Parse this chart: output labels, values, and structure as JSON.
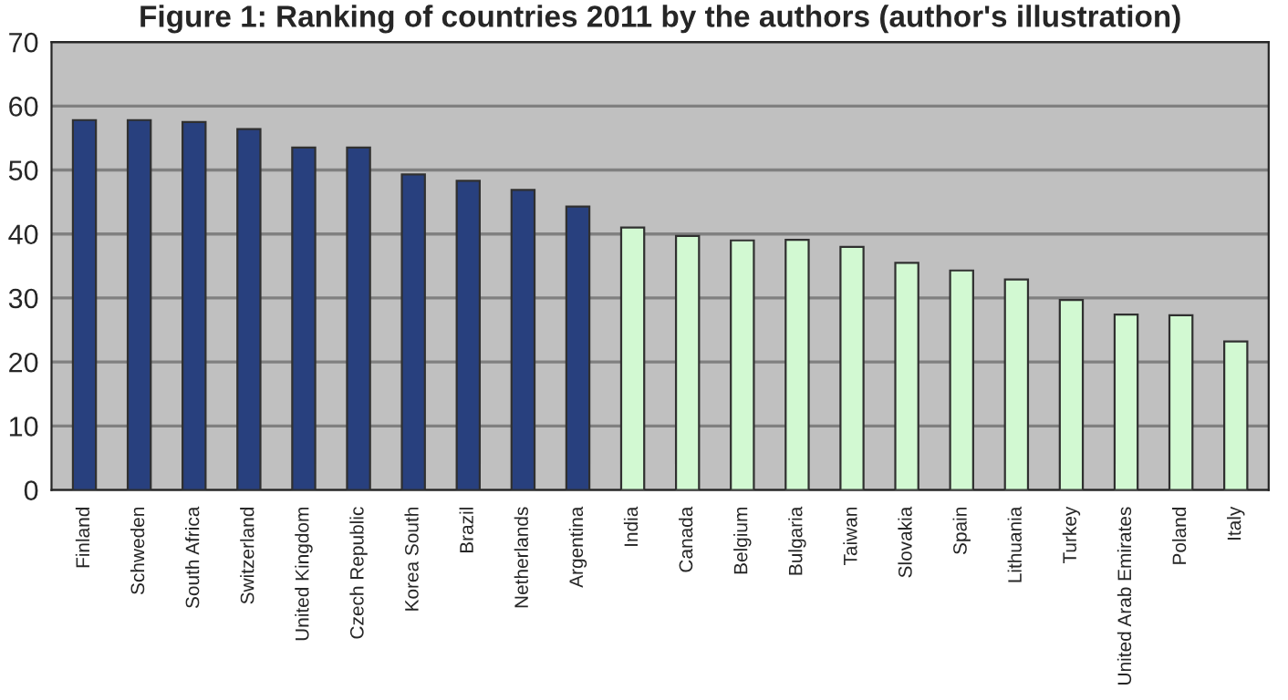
{
  "chart_data": {
    "type": "bar",
    "title": "Figure 1: Ranking of countries 2011 by the authors (author's illustration)",
    "categories": [
      "Finland",
      "Schweden",
      "South Africa",
      "Switzerland",
      "United Kingdom",
      "Czech Republic",
      "Korea South",
      "Brazil",
      "Netherlands",
      "Argentina",
      "India",
      "Canada",
      "Belgium",
      "Bulgaria",
      "Taiwan",
      "Slovakia",
      "Spain",
      "Lithuania",
      "Turkey",
      "United Arab Emirates",
      "Poland",
      "Italy"
    ],
    "values": [
      57.8,
      57.8,
      57.5,
      56.4,
      53.5,
      53.5,
      49.3,
      48.3,
      46.9,
      44.3,
      41.0,
      39.7,
      39.0,
      39.1,
      38.0,
      35.5,
      34.3,
      32.9,
      29.7,
      27.4,
      27.3,
      23.2
    ],
    "colors": [
      "#1a3a8c",
      "#1a3a8c",
      "#1a3a8c",
      "#1a3a8c",
      "#1a3a8c",
      "#1a3a8c",
      "#1a3a8c",
      "#1a3a8c",
      "#1a3a8c",
      "#1a3a8c",
      "#ccffcc",
      "#ccffcc",
      "#ccffcc",
      "#ccffcc",
      "#ccffcc",
      "#ccffcc",
      "#ccffcc",
      "#ccffcc",
      "#ccffcc",
      "#ccffcc",
      "#ccffcc",
      "#ccffcc"
    ],
    "ylim": [
      0,
      70
    ],
    "yticks": [
      0,
      10,
      20,
      30,
      40,
      50,
      60,
      70
    ],
    "grid": "y"
  }
}
